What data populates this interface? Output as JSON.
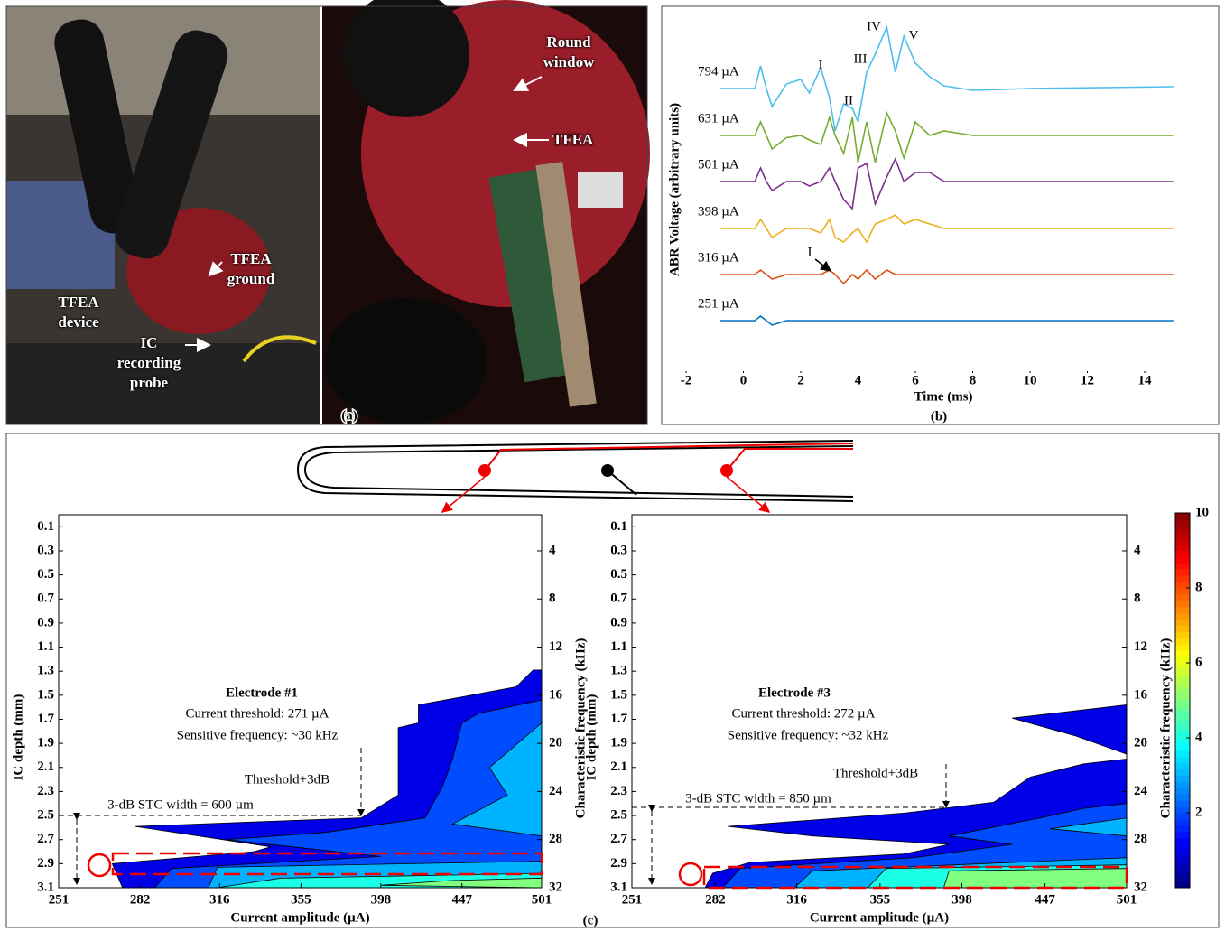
{
  "panel_a": {
    "label": "(a)",
    "annotations": [
      "Round\nwindow",
      "TFEA",
      "TFEA\nground",
      "TFEA\ndevice",
      "IC\nrecording\nprobe"
    ]
  },
  "panel_b": {
    "label": "(b)"
  },
  "panel_c": {
    "label": "(c)"
  },
  "chart_data": [
    {
      "type": "line",
      "xlabel": "Time (ms)",
      "ylabel": "ABR Voltage (arbitrary units)",
      "x": [
        -0.8,
        0.4,
        0.6,
        0.8,
        1.0,
        1.5,
        2.0,
        2.3,
        2.7,
        3.0,
        3.2,
        3.5,
        3.8,
        4.0,
        4.3,
        4.6,
        5.0,
        5.3,
        5.6,
        6.0,
        6.5,
        7.0,
        8.0,
        10,
        15
      ],
      "xlim": [
        -2,
        15
      ],
      "xticks": [
        -2,
        0,
        2,
        4,
        6,
        8,
        10,
        12,
        14
      ],
      "ylim": [
        0,
        80
      ],
      "series": [
        {
          "name": "794 µA",
          "color": "#4dbeee",
          "values": [
            64.4,
            64.4,
            69.4,
            64.4,
            60.4,
            65.4,
            66.4,
            63.4,
            69,
            62.4,
            55,
            61,
            60,
            57,
            68,
            72,
            78,
            68,
            76,
            70,
            67,
            65,
            64,
            64.4,
            64.8
          ]
        },
        {
          "name": "631 µA",
          "color": "#77ac30",
          "values": [
            54,
            54,
            57,
            54,
            51,
            53.5,
            54,
            53,
            52,
            58,
            54,
            50,
            58,
            48,
            57,
            48,
            59,
            55,
            49,
            57,
            54,
            55,
            54,
            54,
            54
          ]
        },
        {
          "name": "501 µA",
          "color": "#7e2f8e",
          "values": [
            43.8,
            43.8,
            46.8,
            43.8,
            41.8,
            43.8,
            43.8,
            42.8,
            43.8,
            46.8,
            43.8,
            39.8,
            37.8,
            46.8,
            47.8,
            38.8,
            44.8,
            48.8,
            43.8,
            45.8,
            45.8,
            43.8,
            43.8,
            43.8,
            43.8
          ]
        },
        {
          "name": "398 µA",
          "color": "#edb120",
          "values": [
            33.4,
            33.4,
            35.4,
            33.4,
            31.4,
            33.4,
            33.4,
            33.4,
            32.4,
            35.4,
            31.4,
            30.4,
            32.4,
            33.4,
            30.4,
            34.4,
            35.4,
            36.4,
            34.4,
            35.4,
            34.4,
            33.4,
            33.4,
            33.4,
            33.4
          ]
        },
        {
          "name": "316 µA",
          "color": "#d95319",
          "values": [
            23.2,
            23.2,
            24.2,
            23.2,
            22.2,
            23.2,
            23.2,
            23.2,
            23.2,
            24.2,
            23.2,
            21.2,
            23.2,
            22.2,
            24.2,
            22.2,
            24.2,
            23.2,
            23.2,
            23.2,
            23.2,
            23.2,
            23.2,
            23.2,
            23.2
          ]
        },
        {
          "name": "251 µA",
          "color": "#0072bd",
          "values": [
            13,
            13,
            14,
            13,
            12,
            13,
            13,
            13,
            13,
            13,
            13,
            13,
            13,
            13,
            13,
            13,
            13,
            13,
            13,
            13,
            13,
            13,
            13,
            13,
            13
          ]
        }
      ],
      "annotations": [
        "I",
        "II",
        "III",
        "IV",
        "V",
        "I"
      ]
    },
    {
      "type": "contour",
      "xlabel": "Current amplitude (µA)",
      "ylabel": "IC depth (mm)",
      "y2label": "Characteristic frequency (kHz)",
      "xscale": "log",
      "xlim": [
        251,
        501
      ],
      "xticks": [
        251,
        282,
        316,
        355,
        398,
        447,
        501
      ],
      "ylim": [
        3.1,
        0
      ],
      "yticks": [
        0.1,
        0.3,
        0.5,
        0.7,
        0.9,
        1.1,
        1.3,
        1.5,
        1.7,
        1.9,
        2.1,
        2.3,
        2.5,
        2.7,
        2.9,
        3.1
      ],
      "y2lim": [
        32,
        1
      ],
      "y2ticks": [
        4,
        8,
        12,
        16,
        20,
        24,
        28,
        32
      ],
      "clim": [
        0,
        10
      ],
      "levels": [
        {
          "value": 1,
          "polygons": [
            [
              [
                495,
                1.29
              ],
              [
                501,
                1.29
              ],
              [
                501,
                3.1
              ],
              [
                275,
                3.1
              ],
              [
                271,
                2.9
              ],
              [
                332,
                2.8
              ],
              [
                340,
                2.76
              ],
              [
                280,
                2.59
              ],
              [
                387,
                2.52
              ],
              [
                408,
                2.33
              ],
              [
                408,
                1.77
              ],
              [
                420,
                1.73
              ],
              [
                420,
                1.58
              ],
              [
                453,
                1.5
              ],
              [
                483,
                1.43
              ]
            ]
          ]
        },
        {
          "value": 2,
          "polygons": [
            [
              [
                447,
                1.73
              ],
              [
                458,
                1.65
              ],
              [
                501,
                1.54
              ],
              [
                501,
                3.1
              ],
              [
                288,
                3.1
              ],
              [
                295,
                2.94
              ],
              [
                398,
                2.84
              ],
              [
                319,
                2.7
              ],
              [
                368,
                2.64
              ],
              [
                424,
                2.52
              ],
              [
                435,
                2.25
              ],
              [
                441,
                2.03
              ]
            ]
          ]
        },
        {
          "value": 3,
          "polygons": [
            [
              [
                465,
                2.1
              ],
              [
                501,
                1.73
              ],
              [
                501,
                2.67
              ],
              [
                441,
                2.57
              ],
              [
                477,
                2.33
              ]
            ],
            [
              [
                311,
                3.1
              ],
              [
                315,
                2.93
              ],
              [
                501,
                2.88
              ],
              [
                501,
                3.1
              ]
            ]
          ]
        },
        {
          "value": 4,
          "polygons": [
            [
              [
                315,
                3.1
              ],
              [
                345,
                3.02
              ],
              [
                420,
                3.0
              ],
              [
                501,
                2.98
              ],
              [
                501,
                3.1
              ]
            ]
          ]
        },
        {
          "value": 5,
          "polygons": [
            [
              [
                398,
                3.08
              ],
              [
                440,
                3.04
              ],
              [
                501,
                3.02
              ],
              [
                501,
                3.1
              ]
            ]
          ]
        }
      ],
      "annotations": [
        "Electrode #1",
        "Current threshold: 271 µA",
        "Sensitive frequency: ~30 kHz",
        "Threshold+3dB",
        "3-dB STC width = 600 µm"
      ]
    },
    {
      "type": "contour",
      "xlabel": "Current amplitude (µA)",
      "ylabel": "IC depth (mm)",
      "y2label": "Characteristic frequency (kHz)",
      "xscale": "log",
      "xlim": [
        251,
        501
      ],
      "xticks": [
        251,
        282,
        316,
        355,
        398,
        447,
        501
      ],
      "ylim": [
        3.1,
        0
      ],
      "yticks": [
        0.1,
        0.3,
        0.5,
        0.7,
        0.9,
        1.1,
        1.3,
        1.5,
        1.7,
        1.9,
        2.1,
        2.3,
        2.5,
        2.7,
        2.9,
        3.1
      ],
      "y2lim": [
        32,
        1
      ],
      "y2ticks": [
        4,
        8,
        12,
        16,
        20,
        24,
        28,
        32
      ],
      "clim": [
        0,
        10
      ],
      "cticks": [
        2,
        4,
        6,
        8,
        10
      ],
      "colorbar_label": "Characteristic frequency (kHz)",
      "levels": [
        {
          "value": 1,
          "polygons": [
            [
              [
                501,
                2.03
              ],
              [
                501,
                3.1
              ],
              [
                278,
                3.1
              ],
              [
                281,
                2.98
              ],
              [
                296,
                2.89
              ],
              [
                367,
                2.82
              ],
              [
                391,
                2.74
              ],
              [
                323,
                2.67
              ],
              [
                287,
                2.59
              ],
              [
                367,
                2.48
              ],
              [
                416,
                2.39
              ],
              [
                438,
                2.18
              ],
              [
                472,
                2.07
              ]
            ],
            [
              [
                427,
                1.69
              ],
              [
                501,
                1.58
              ],
              [
                501,
                1.99
              ],
              [
                467,
                1.84
              ]
            ]
          ]
        },
        {
          "value": 2,
          "polygons": [
            [
              [
                501,
                2.4
              ],
              [
                501,
                3.1
              ],
              [
                285,
                3.1
              ],
              [
                292,
                2.94
              ],
              [
                372,
                2.85
              ],
              [
                427,
                2.74
              ],
              [
                391,
                2.67
              ],
              [
                444,
                2.52
              ],
              [
                472,
                2.44
              ]
            ]
          ]
        },
        {
          "value": 3,
          "polygons": [
            [
              [
                450,
                2.61
              ],
              [
                501,
                2.52
              ],
              [
                501,
                2.67
              ]
            ],
            [
              [
                315,
                3.1
              ],
              [
                323,
                2.96
              ],
              [
                501,
                2.85
              ],
              [
                501,
                3.1
              ]
            ]
          ]
        },
        {
          "value": 4,
          "polygons": [
            [
              [
                349,
                3.1
              ],
              [
                358,
                2.94
              ],
              [
                501,
                2.91
              ],
              [
                501,
                3.1
              ]
            ]
          ]
        },
        {
          "value": 5,
          "polygons": [
            [
              [
                388,
                3.1
              ],
              [
                391,
                2.96
              ],
              [
                501,
                2.94
              ],
              [
                501,
                3.1
              ]
            ]
          ]
        }
      ],
      "annotations": [
        "Electrode #3",
        "Current threshold: 272 µA",
        "Sensitive frequency: ~32 kHz",
        "Threshold+3dB",
        "3-dB STC width = 850 µm"
      ]
    }
  ]
}
